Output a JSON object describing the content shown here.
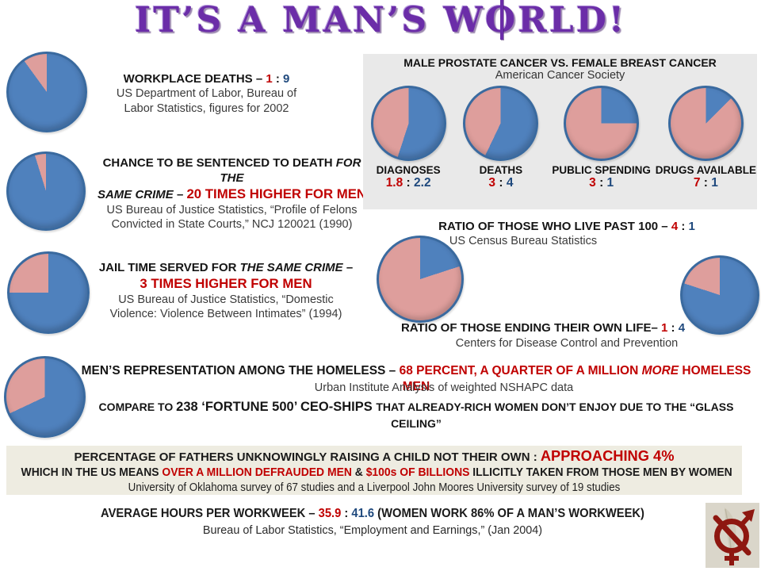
{
  "title": {
    "pre": "IT’S A MAN’S W",
    "o": "O",
    "post": "RLD!"
  },
  "colors": {
    "title_purple": "#6B2DA8",
    "accent_red": "#C00000",
    "accent_blue": "#1F497D",
    "pie_blue": "#4F81BD",
    "pie_pink": "#DE9E9C",
    "pie_border": "#3A6A9F",
    "panel_gray": "#E9E9E9",
    "band_beige": "#EEECE1",
    "stamp_red": "#8E1710"
  },
  "chart_data": [
    {
      "type": "pie",
      "name": "workplace-deaths",
      "ratio_label": "1 : 9",
      "female_pct": 10,
      "male_pct": 90
    },
    {
      "type": "pie",
      "name": "death-sentence",
      "ratio_label": "20 times higher for men",
      "female_pct": 4.8,
      "male_pct": 95.2
    },
    {
      "type": "pie",
      "name": "jail-time",
      "ratio_label": "3 times higher for men",
      "female_pct": 25,
      "male_pct": 75
    },
    {
      "type": "pie",
      "name": "homeless",
      "ratio_label": "68 percent men",
      "female_pct": 32,
      "male_pct": 68
    },
    {
      "type": "pie",
      "name": "diagnoses",
      "ratio_label": "1.8 : 2.2",
      "female_pct": 45,
      "male_pct": 55
    },
    {
      "type": "pie",
      "name": "deaths",
      "ratio_label": "3 : 4",
      "female_pct": 42.9,
      "male_pct": 57.1
    },
    {
      "type": "pie",
      "name": "public-spending",
      "ratio_label": "3 : 1",
      "female_pct": 75,
      "male_pct": 25
    },
    {
      "type": "pie",
      "name": "drugs-available",
      "ratio_label": "7 : 1",
      "female_pct": 87.5,
      "male_pct": 12.5
    },
    {
      "type": "pie",
      "name": "live-past-100",
      "ratio_label": "4 : 1",
      "female_pct": 80,
      "male_pct": 20
    },
    {
      "type": "pie",
      "name": "ending-own-life",
      "ratio_label": "1 : 4",
      "female_pct": 20,
      "male_pct": 80
    }
  ],
  "workplace": {
    "heading": [
      {
        "t": "WORKPLACE DEATHS – ",
        "s": "b"
      },
      {
        "t": "1",
        "s": "r"
      },
      {
        "t": " : ",
        "s": "b"
      },
      {
        "t": "9",
        "s": "bl"
      }
    ],
    "sources": [
      "US Department of Labor, Bureau of",
      "Labor Statistics, figures for 2002"
    ]
  },
  "sentence": {
    "heading_line1": [
      {
        "t": "CHANCE TO BE SENTENCED TO DEATH ",
        "s": "b"
      },
      {
        "t": "FOR THE",
        "s": "i"
      }
    ],
    "heading_line2": [
      {
        "t": "SAME CRIME",
        "s": "i"
      },
      {
        "t": " –  ",
        "s": "b"
      },
      {
        "t": "20 TIMES HIGHER FOR MEN",
        "s": "rlg"
      }
    ],
    "sources": [
      "US Bureau of Justice Statistics, “Profile of Felons",
      "Convicted in State Courts,” NCJ 120021 (1990)"
    ]
  },
  "jail": {
    "heading_line1": [
      {
        "t": "JAIL TIME SERVED FOR ",
        "s": "b"
      },
      {
        "t": "THE SAME CRIME",
        "s": "i"
      },
      {
        "t": " –",
        "s": "b"
      }
    ],
    "heading_line2": [
      {
        "t": "3 TIMES HIGHER FOR MEN",
        "s": "rlg"
      }
    ],
    "sources": [
      "US Bureau of Justice Statistics, “Domestic",
      "Violence: Violence Between Intimates” (1994)"
    ]
  },
  "homeless": {
    "line1": [
      {
        "t": "MEN’S REPRESENTATION AMONG THE HOMELESS – ",
        "s": "b"
      },
      {
        "t": "68 PERCENT, A QUARTER OF  A MILLION ",
        "s": "r"
      },
      {
        "t": "MORE",
        "s": "ri"
      },
      {
        "t": " HOMELESS MEN",
        "s": "r"
      }
    ],
    "source": "Urban Institute Analysis of weighted NSHAPC data",
    "compare": [
      {
        "t": "COMPARE TO ",
        "s": "sm"
      },
      {
        "t": "238 ‘FORTUNE 500’ CEO-SHIPS ",
        "s": "b"
      },
      {
        "t": "THAT ALREADY-RICH WOMEN DON’T ENJOY DUE TO THE  “GLASS CEILING”",
        "s": "sm"
      }
    ]
  },
  "cancer": {
    "title": "MALE PROSTATE CANCER VS. FEMALE BREAST CANCER",
    "subtitle": "American Cancer Society",
    "items": [
      {
        "label": "DIAGNOSES",
        "ratio": [
          {
            "t": "1.8",
            "s": "r"
          },
          {
            "t": " : ",
            "s": "b"
          },
          {
            "t": "2.2",
            "s": "bl"
          }
        ]
      },
      {
        "label": "DEATHS",
        "ratio": [
          {
            "t": "3",
            "s": "r"
          },
          {
            "t": " : ",
            "s": "b"
          },
          {
            "t": "4",
            "s": "bl"
          }
        ]
      },
      {
        "label": "PUBLIC SPENDING",
        "ratio": [
          {
            "t": "3",
            "s": "r"
          },
          {
            "t": " : ",
            "s": "b"
          },
          {
            "t": "1",
            "s": "bl"
          }
        ]
      },
      {
        "label": "DRUGS AVAILABLE",
        "ratio": [
          {
            "t": "7",
            "s": "r"
          },
          {
            "t": " : ",
            "s": "b"
          },
          {
            "t": "1",
            "s": "bl"
          }
        ]
      }
    ]
  },
  "past100": {
    "heading": [
      {
        "t": "RATIO OF THOSE WHO LIVE PAST 100 –  ",
        "s": "b"
      },
      {
        "t": "4",
        "s": "r"
      },
      {
        "t": " : ",
        "s": "b"
      },
      {
        "t": "1",
        "s": "bl"
      }
    ],
    "source": "US Census Bureau Statistics"
  },
  "ownlife": {
    "heading": [
      {
        "t": "RATIO OF THOSE ENDING THEIR OWN LIFE– ",
        "s": "b"
      },
      {
        "t": "1",
        "s": "r"
      },
      {
        "t": " : ",
        "s": "b"
      },
      {
        "t": "4",
        "s": "bl"
      }
    ],
    "source": "Centers for Disease Control and Prevention"
  },
  "fathers": {
    "line1": [
      {
        "t": "PERCENTAGE OF FATHERS UNKNOWINGLY RAISING A CHILD NOT THEIR OWN : ",
        "s": "b"
      },
      {
        "t": "APPROACHING 4%",
        "s": "rxl"
      }
    ],
    "line2": [
      {
        "t": "WHICH IN THE US MEANS ",
        "s": "b"
      },
      {
        "t": "OVER A MILLION DEFRAUDED MEN",
        "s": "r"
      },
      {
        "t": " & ",
        "s": "b"
      },
      {
        "t": "$100s OF BILLIONS",
        "s": "r"
      },
      {
        "t": " ILLICITLY TAKEN FROM THOSE MEN BY WOMEN",
        "s": "b"
      }
    ],
    "source": "University of Oklahoma survey of 67 studies and a Liverpool John Moores University survey of 19 studies"
  },
  "workweek": {
    "line1": [
      {
        "t": "AVERAGE HOURS PER WORKWEEK – ",
        "s": "b"
      },
      {
        "t": "35.9",
        "s": "r"
      },
      {
        "t": " : ",
        "s": "b"
      },
      {
        "t": "41.6",
        "s": "bl"
      },
      {
        "t": " (WOMEN WORK 86% OF A MAN’S WORKWEEK)",
        "s": "b"
      }
    ],
    "source": "Bureau of Labor Statistics, “Employment and Earnings,” (Jan 2004)"
  }
}
